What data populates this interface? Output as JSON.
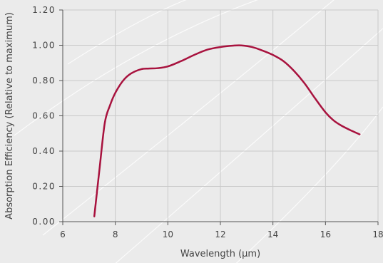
{
  "chart_data": {
    "type": "line",
    "title": "",
    "xlabel": "Wavelength (µm)",
    "ylabel": "Absorption Efficiency (Relative to maximum)",
    "xlim": [
      6,
      18
    ],
    "ylim": [
      0.0,
      1.2
    ],
    "x_ticks": [
      6,
      8,
      10,
      12,
      14,
      16,
      18
    ],
    "x_tick_labels": [
      "6",
      "8",
      "10",
      "12",
      "14",
      "16",
      "18"
    ],
    "y_ticks": [
      0.0,
      0.2,
      0.4,
      0.6,
      0.8,
      1.0,
      1.2
    ],
    "y_tick_labels": [
      "0.00",
      "0.20",
      "0.40",
      "0.60",
      "0.80",
      "1.00",
      "1.20"
    ],
    "grid": true,
    "line_color": "#a8123e",
    "background_color": "#ebebeb",
    "series": [
      {
        "x": [
          7.2,
          7.4,
          7.6,
          7.8,
          8.0,
          8.3,
          8.6,
          9.0,
          9.3,
          9.6,
          10.0,
          10.5,
          11.0,
          11.5,
          12.0,
          12.5,
          12.8,
          13.2,
          13.6,
          14.0,
          14.4,
          14.8,
          15.2,
          15.6,
          16.0,
          16.3,
          16.6,
          17.0,
          17.3
        ],
        "y": [
          0.03,
          0.3,
          0.56,
          0.66,
          0.73,
          0.8,
          0.84,
          0.865,
          0.868,
          0.87,
          0.88,
          0.91,
          0.945,
          0.975,
          0.99,
          0.998,
          0.999,
          0.99,
          0.97,
          0.945,
          0.91,
          0.855,
          0.785,
          0.7,
          0.62,
          0.575,
          0.545,
          0.515,
          0.495
        ]
      }
    ]
  }
}
